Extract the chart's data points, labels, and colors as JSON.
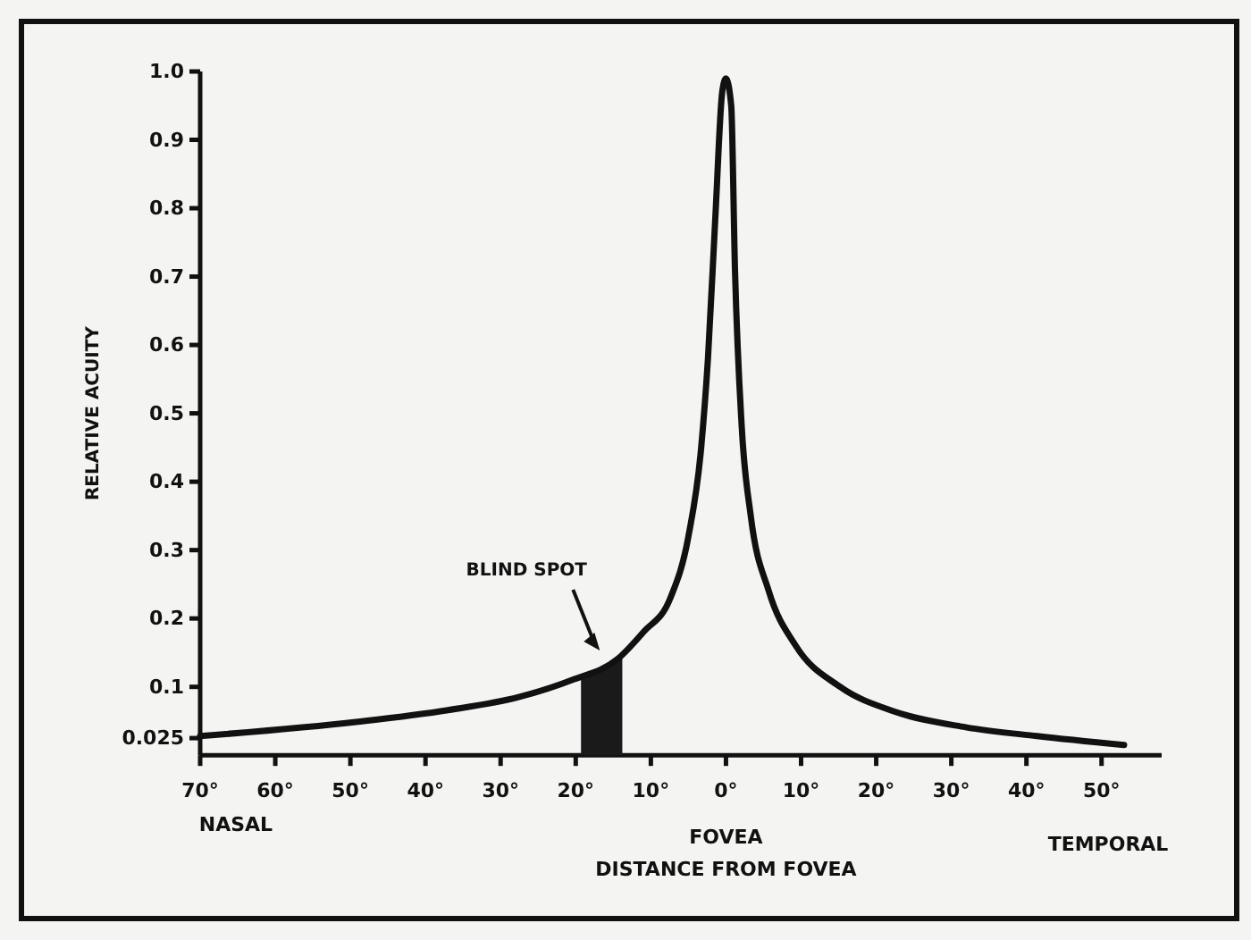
{
  "chart_data": {
    "type": "line",
    "xlabel": "DISTANCE FROM FOVEA",
    "ylabel": "RELATIVE ACUITY",
    "series": [
      {
        "color": "#111111",
        "x": [
          -70,
          -49,
          -37,
          -27.6,
          -20.5,
          -14.5,
          -11,
          -7.4,
          -5,
          -3.3,
          -2.4,
          -1.4,
          -0.5,
          0,
          0.7,
          1.2,
          2.1,
          3.3,
          5.7,
          9.3,
          15.2,
          22.4,
          31.9,
          41.4,
          53
        ],
        "values": [
          0.028,
          0.049,
          0.066,
          0.085,
          0.11,
          0.14,
          0.18,
          0.23,
          0.32,
          0.45,
          0.58,
          0.79,
          0.97,
          0.99,
          0.95,
          0.71,
          0.48,
          0.35,
          0.24,
          0.16,
          0.1,
          0.064,
          0.041,
          0.028,
          0.015
        ]
      }
    ],
    "xlim": [
      -70,
      58
    ],
    "ylim": [
      0,
      1
    ],
    "xticks": [
      {
        "value": -70,
        "label": "70°"
      },
      {
        "value": -60,
        "label": "60°"
      },
      {
        "value": -50,
        "label": "50°"
      },
      {
        "value": -40,
        "label": "40°"
      },
      {
        "value": -30,
        "label": "30°"
      },
      {
        "value": -20,
        "label": "20°"
      },
      {
        "value": -10,
        "label": "10°"
      },
      {
        "value": 0,
        "label": "0°"
      },
      {
        "value": 10,
        "label": "10°"
      },
      {
        "value": 20,
        "label": "20°"
      },
      {
        "value": 30,
        "label": "30°"
      },
      {
        "value": 40,
        "label": "40°"
      },
      {
        "value": 50,
        "label": "50°"
      }
    ],
    "yticks": [
      {
        "value": 0.025,
        "label": "0.025"
      },
      {
        "value": 0.1,
        "label": "0.1"
      },
      {
        "value": 0.2,
        "label": "0.2"
      },
      {
        "value": 0.3,
        "label": "0.3"
      },
      {
        "value": 0.4,
        "label": "0.4"
      },
      {
        "value": 0.5,
        "label": "0.5"
      },
      {
        "value": 0.6,
        "label": "0.6"
      },
      {
        "value": 0.7,
        "label": "0.7"
      },
      {
        "value": 0.8,
        "label": "0.8"
      },
      {
        "value": 0.9,
        "label": "0.9"
      },
      {
        "value": 1,
        "label": "1.0"
      }
    ],
    "bands": [
      {
        "axis": "x",
        "from": -19.3,
        "to": -13.8,
        "label": "BLIND SPOT",
        "color": "#1a1a1a"
      }
    ],
    "annotations": [
      "NASAL",
      "FOVEA",
      "TEMPORAL"
    ],
    "grid": false,
    "marker": "none",
    "line_style": "solid"
  }
}
